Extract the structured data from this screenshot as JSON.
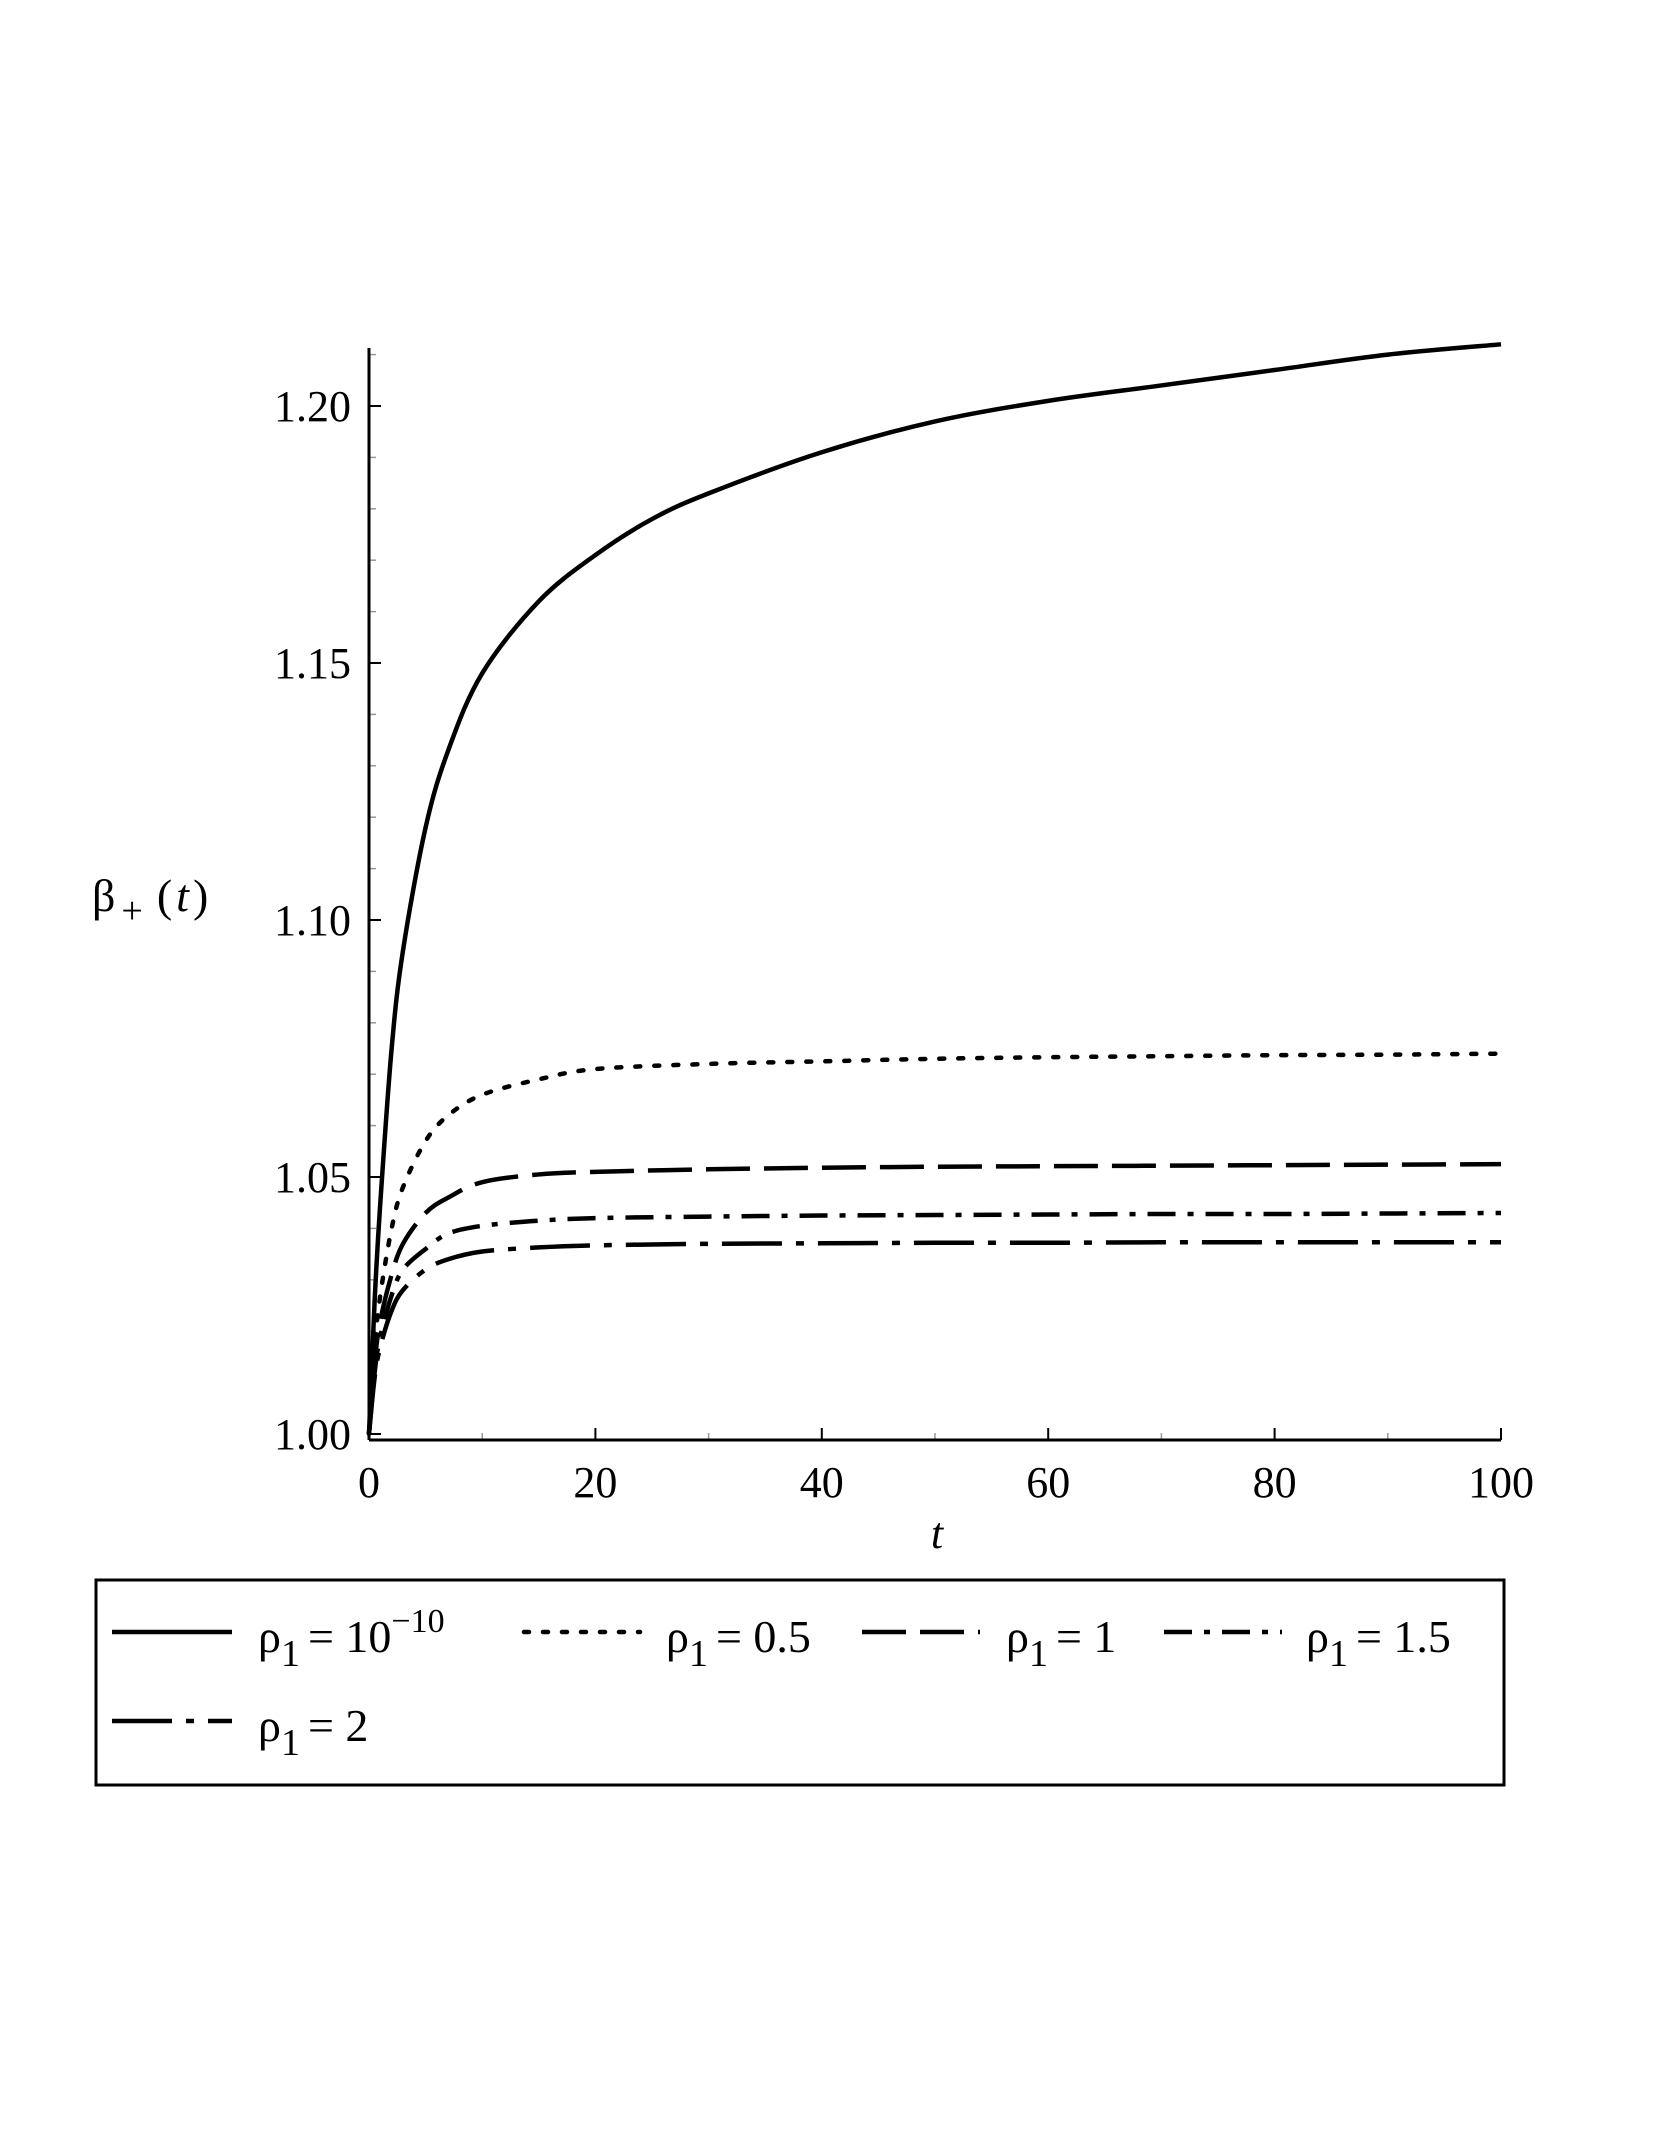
{
  "chart_data": {
    "type": "line",
    "xlabel": "t",
    "ylabel": {
      "base": "β",
      "sub": "+",
      "arg": "(t)",
      "var": "t"
    },
    "xlim": [
      0,
      100
    ],
    "ylim": [
      1.0,
      1.215
    ],
    "xticks": [
      0,
      20,
      40,
      60,
      80,
      100
    ],
    "xtick_labels": [
      "0",
      "20",
      "40",
      "60",
      "80",
      "100"
    ],
    "yticks": [
      1.0,
      1.05,
      1.1,
      1.15,
      1.2
    ],
    "ytick_labels": [
      "1.00",
      "1.05",
      "1.10",
      "1.15",
      "1.20"
    ],
    "grid": false,
    "legend_position": "bottom",
    "series": [
      {
        "name": "ρ1 = 10^-10",
        "legend": {
          "rho": "ρ",
          "sub": "1",
          "eq": "= 10",
          "sup": "−10"
        },
        "dash": "solid",
        "x": [
          0,
          0.5,
          1,
          2,
          3,
          5,
          7,
          10,
          15,
          20,
          25,
          30,
          40,
          50,
          60,
          70,
          80,
          90,
          100
        ],
        "y": [
          1.0,
          1.026,
          1.045,
          1.075,
          1.094,
          1.118,
          1.133,
          1.148,
          1.162,
          1.171,
          1.178,
          1.183,
          1.191,
          1.197,
          1.201,
          1.204,
          1.207,
          1.21,
          1.212
        ]
      },
      {
        "name": "ρ1 = 0.5",
        "legend": {
          "rho": "ρ",
          "sub": "1",
          "eq": "= 0.5",
          "sup": ""
        },
        "dash": "dot",
        "x": [
          0,
          0.5,
          1,
          2,
          3,
          5,
          7,
          10,
          15,
          20,
          30,
          40,
          50,
          60,
          70,
          80,
          90,
          100
        ],
        "y": [
          1.0,
          1.017,
          1.027,
          1.04,
          1.048,
          1.057,
          1.062,
          1.066,
          1.069,
          1.071,
          1.072,
          1.0725,
          1.073,
          1.0733,
          1.0735,
          1.0737,
          1.0738,
          1.074
        ]
      },
      {
        "name": "ρ1 = 1",
        "legend": {
          "rho": "ρ",
          "sub": "1",
          "eq": "= 1",
          "sup": ""
        },
        "dash": "longdash",
        "x": [
          0,
          0.5,
          1,
          2,
          3,
          5,
          7,
          10,
          15,
          20,
          30,
          40,
          50,
          60,
          70,
          80,
          90,
          100
        ],
        "y": [
          1.0,
          1.014,
          1.022,
          1.031,
          1.037,
          1.043,
          1.046,
          1.049,
          1.0505,
          1.051,
          1.0515,
          1.0518,
          1.052,
          1.0521,
          1.0522,
          1.0523,
          1.0524,
          1.0525
        ]
      },
      {
        "name": "ρ1 = 1.5",
        "legend": {
          "rho": "ρ",
          "sub": "1",
          "eq": "= 1.5",
          "sup": ""
        },
        "dash": "dashdot",
        "x": [
          0,
          0.5,
          1,
          2,
          3,
          5,
          7,
          10,
          15,
          20,
          30,
          40,
          50,
          60,
          70,
          80,
          90,
          100
        ],
        "y": [
          1.0,
          1.012,
          1.019,
          1.027,
          1.032,
          1.036,
          1.039,
          1.0405,
          1.0415,
          1.042,
          1.0423,
          1.0425,
          1.0426,
          1.0427,
          1.0428,
          1.0428,
          1.0429,
          1.043
        ]
      },
      {
        "name": "ρ1 = 2",
        "legend": {
          "rho": "ρ",
          "sub": "1",
          "eq": "= 2",
          "sup": ""
        },
        "dash": "longdashdot",
        "x": [
          0,
          0.5,
          1,
          2,
          3,
          5,
          7,
          10,
          15,
          20,
          30,
          40,
          50,
          60,
          70,
          80,
          90,
          100
        ],
        "y": [
          1.0,
          1.011,
          1.017,
          1.024,
          1.028,
          1.032,
          1.034,
          1.0355,
          1.0363,
          1.0367,
          1.037,
          1.0371,
          1.0372,
          1.0372,
          1.0373,
          1.0373,
          1.0373,
          1.0373
        ]
      }
    ]
  }
}
